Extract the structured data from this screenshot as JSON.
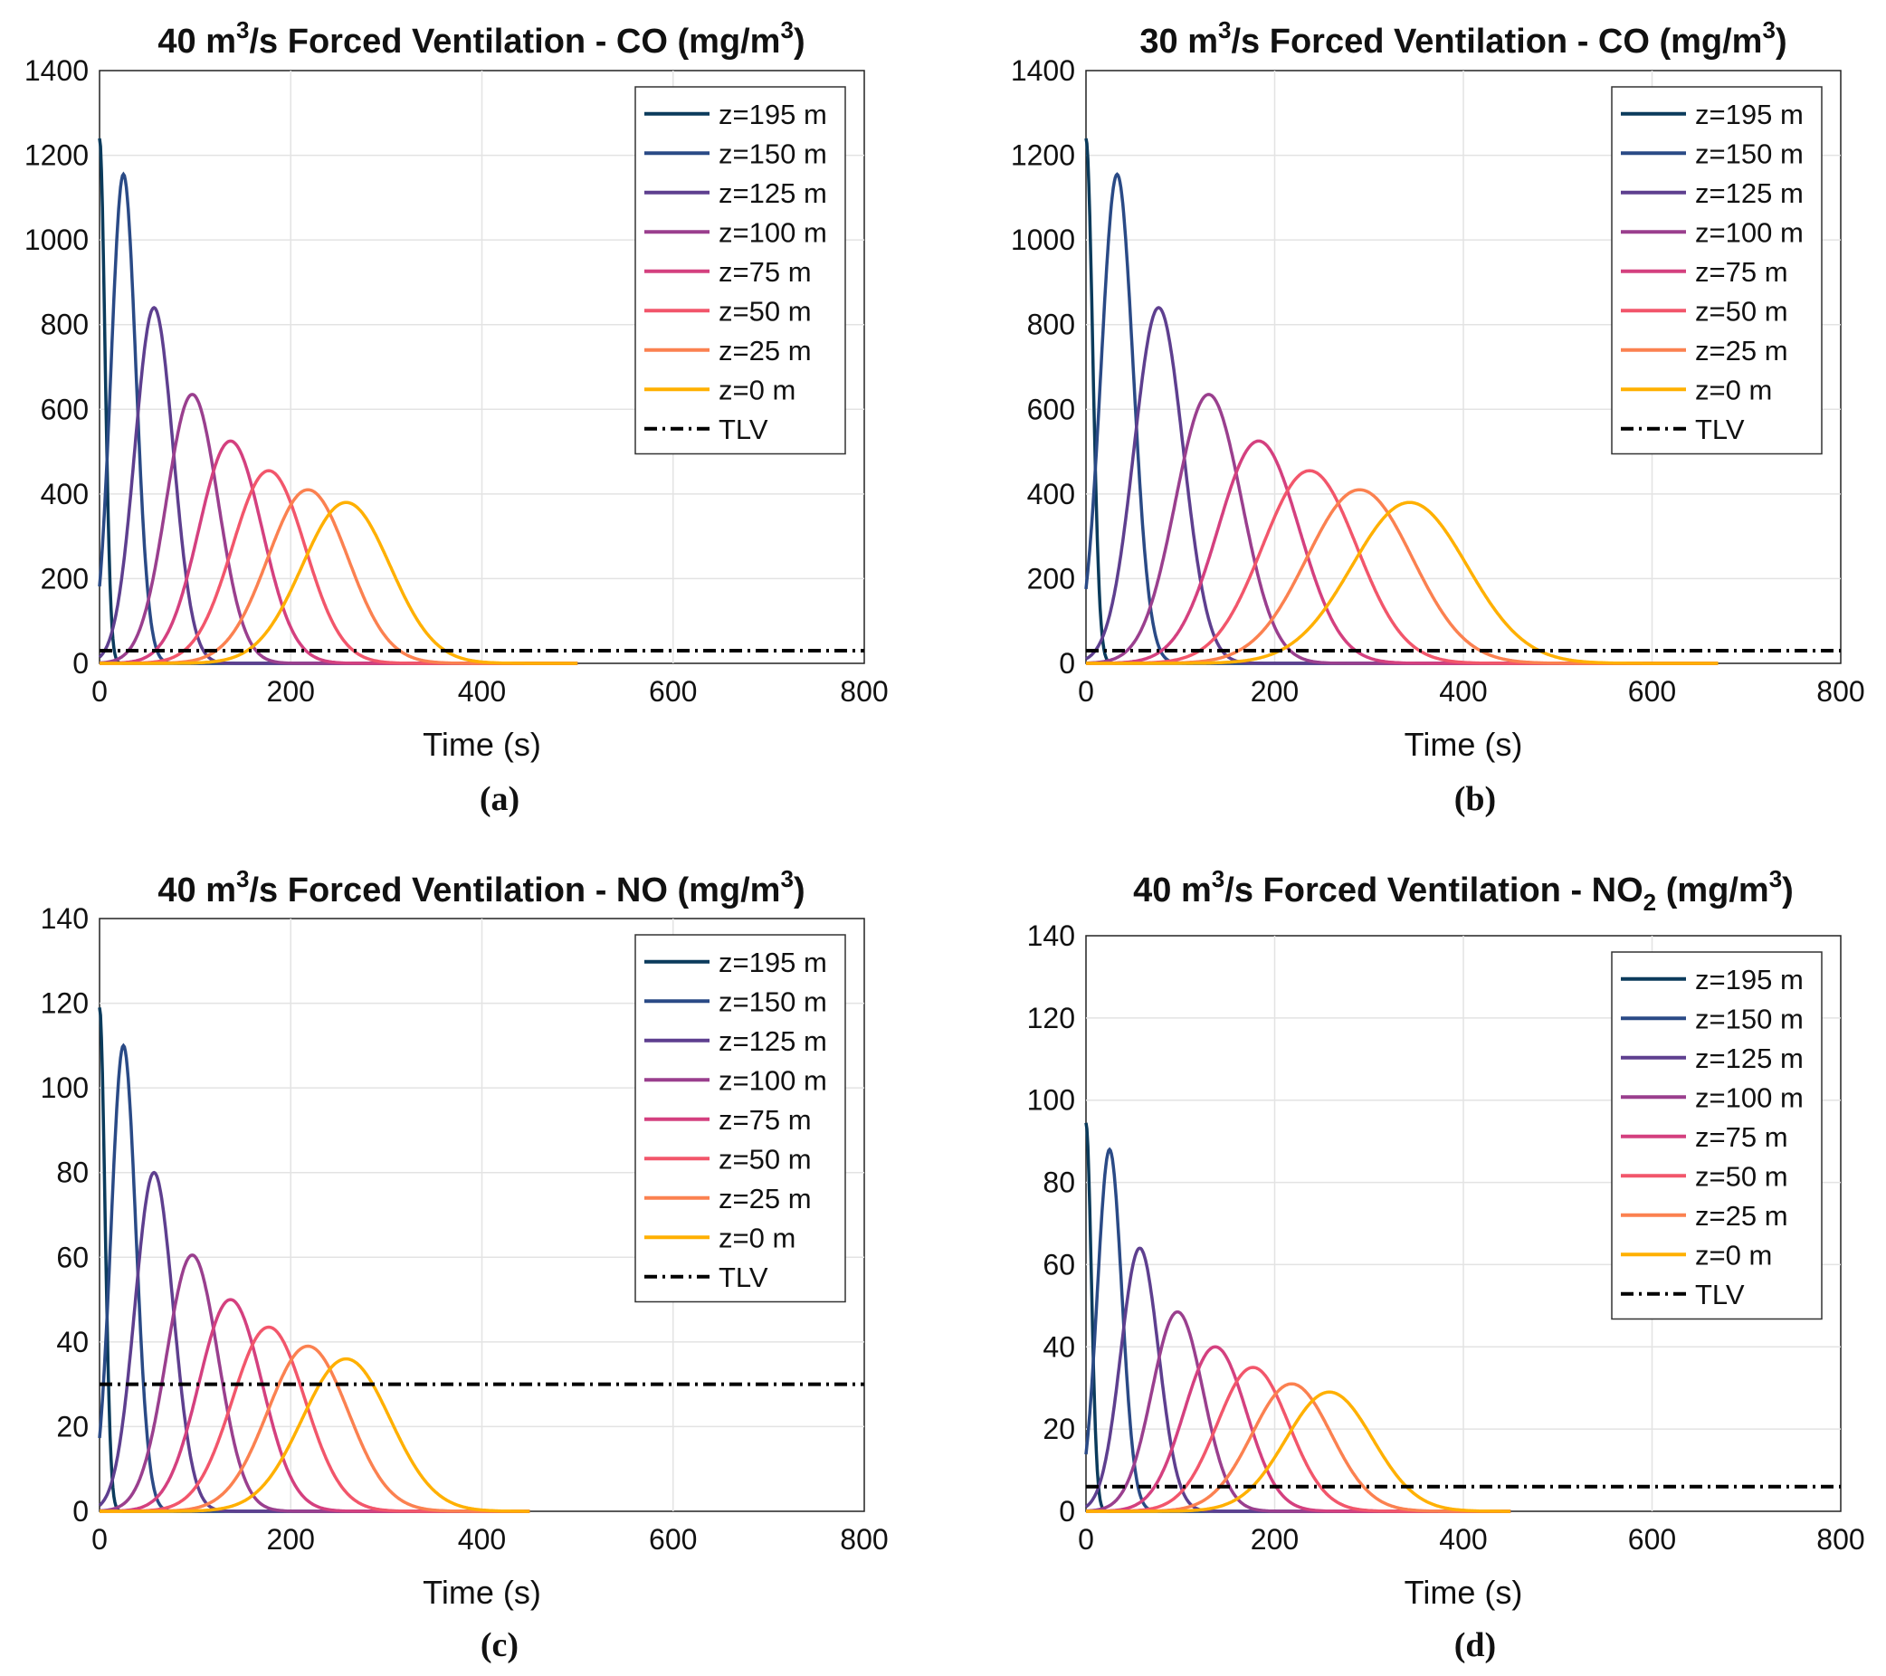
{
  "chart_data": [
    {
      "type": "line",
      "panel": "(a)",
      "title_parts": [
        "40 m",
        "3",
        "/s Forced Ventilation - CO (mg/m",
        "3",
        ")"
      ],
      "title": "40 m3/s Forced Ventilation - CO (mg/m3)",
      "xlabel": "Time (s)",
      "ylabel": "",
      "xlim": [
        0,
        800
      ],
      "ylim": [
        0,
        1400
      ],
      "xticks": [
        "0",
        "200",
        "400",
        "600",
        "800"
      ],
      "yticks": [
        "0",
        "200",
        "400",
        "600",
        "800",
        "1000",
        "1200",
        "1400"
      ],
      "xtick_values": [
        0,
        200,
        400,
        600,
        800
      ],
      "ytick_values": [
        0,
        200,
        400,
        600,
        800,
        1000,
        1200,
        1400
      ],
      "grid": true,
      "legend_position": "top-right",
      "t_end": 500,
      "series": [
        {
          "name": "z=195 m",
          "color": "#0b3b5c",
          "peak_time": 0,
          "peak_value": 1240,
          "width": 8
        },
        {
          "name": "z=150 m",
          "color": "#2a4a86",
          "peak_time": 25,
          "peak_value": 1155,
          "width": 13
        },
        {
          "name": "z=125 m",
          "color": "#5e3f8f",
          "peak_time": 57,
          "peak_value": 840,
          "width": 20
        },
        {
          "name": "z=100 m",
          "color": "#9a3f8e",
          "peak_time": 97,
          "peak_value": 635,
          "width": 27
        },
        {
          "name": "z=75 m",
          "color": "#d4407f",
          "peak_time": 137,
          "peak_value": 525,
          "width": 33
        },
        {
          "name": "z=50 m",
          "color": "#f2566b",
          "peak_time": 177,
          "peak_value": 455,
          "width": 38
        },
        {
          "name": "z=25 m",
          "color": "#fb8150",
          "peak_time": 218,
          "peak_value": 410,
          "width": 42
        },
        {
          "name": "z=0 m",
          "color": "#ffb000",
          "peak_time": 258,
          "peak_value": 380,
          "width": 46
        },
        {
          "name": "TLV",
          "color": "#000000",
          "constant": 30
        }
      ]
    },
    {
      "type": "line",
      "panel": "(b)",
      "title_parts": [
        "30 m",
        "3",
        "/s Forced Ventilation - CO (mg/m",
        "3",
        ")"
      ],
      "title": "30 m3/s Forced Ventilation - CO (mg/m3)",
      "xlabel": "Time (s)",
      "ylabel": "",
      "xlim": [
        0,
        800
      ],
      "ylim": [
        0,
        1400
      ],
      "xticks": [
        "0",
        "200",
        "400",
        "600",
        "800"
      ],
      "yticks": [
        "0",
        "200",
        "400",
        "600",
        "800",
        "1000",
        "1200",
        "1400"
      ],
      "xtick_values": [
        0,
        200,
        400,
        600,
        800
      ],
      "ytick_values": [
        0,
        200,
        400,
        600,
        800,
        1000,
        1200,
        1400
      ],
      "grid": true,
      "legend_position": "top-right",
      "t_end": 670,
      "series": [
        {
          "name": "z=195 m",
          "color": "#0b3b5c",
          "peak_time": 0,
          "peak_value": 1240,
          "width": 10
        },
        {
          "name": "z=150 m",
          "color": "#2a4a86",
          "peak_time": 33,
          "peak_value": 1155,
          "width": 17
        },
        {
          "name": "z=125 m",
          "color": "#5e3f8f",
          "peak_time": 77,
          "peak_value": 840,
          "width": 26
        },
        {
          "name": "z=100 m",
          "color": "#9a3f8e",
          "peak_time": 130,
          "peak_value": 635,
          "width": 35
        },
        {
          "name": "z=75 m",
          "color": "#d4407f",
          "peak_time": 183,
          "peak_value": 525,
          "width": 43
        },
        {
          "name": "z=50 m",
          "color": "#f2566b",
          "peak_time": 237,
          "peak_value": 455,
          "width": 50
        },
        {
          "name": "z=25 m",
          "color": "#fb8150",
          "peak_time": 290,
          "peak_value": 410,
          "width": 56
        },
        {
          "name": "z=0 m",
          "color": "#ffb000",
          "peak_time": 343,
          "peak_value": 380,
          "width": 61
        },
        {
          "name": "TLV",
          "color": "#000000",
          "constant": 30
        }
      ]
    },
    {
      "type": "line",
      "panel": "(c)",
      "title_parts": [
        "40 m",
        "3",
        "/s Forced Ventilation - NO (mg/m",
        "3",
        ")"
      ],
      "title": "40 m3/s Forced Ventilation - NO (mg/m3)",
      "xlabel": "Time (s)",
      "ylabel": "",
      "xlim": [
        0,
        800
      ],
      "ylim": [
        0,
        140
      ],
      "xticks": [
        "0",
        "200",
        "400",
        "600",
        "800"
      ],
      "yticks": [
        "0",
        "20",
        "40",
        "60",
        "80",
        "100",
        "120",
        "140"
      ],
      "xtick_values": [
        0,
        200,
        400,
        600,
        800
      ],
      "ytick_values": [
        0,
        20,
        40,
        60,
        80,
        100,
        120,
        140
      ],
      "grid": true,
      "legend_position": "top-right",
      "t_end": 450,
      "series": [
        {
          "name": "z=195 m",
          "color": "#0b3b5c",
          "peak_time": 0,
          "peak_value": 119,
          "width": 8
        },
        {
          "name": "z=150 m",
          "color": "#2a4a86",
          "peak_time": 25,
          "peak_value": 110,
          "width": 13
        },
        {
          "name": "z=125 m",
          "color": "#5e3f8f",
          "peak_time": 57,
          "peak_value": 80,
          "width": 20
        },
        {
          "name": "z=100 m",
          "color": "#9a3f8e",
          "peak_time": 97,
          "peak_value": 60.5,
          "width": 27
        },
        {
          "name": "z=75 m",
          "color": "#d4407f",
          "peak_time": 137,
          "peak_value": 50,
          "width": 33
        },
        {
          "name": "z=50 m",
          "color": "#f2566b",
          "peak_time": 177,
          "peak_value": 43.5,
          "width": 38
        },
        {
          "name": "z=25 m",
          "color": "#fb8150",
          "peak_time": 218,
          "peak_value": 39,
          "width": 42
        },
        {
          "name": "z=0 m",
          "color": "#ffb000",
          "peak_time": 258,
          "peak_value": 36,
          "width": 46
        },
        {
          "name": "TLV",
          "color": "#000000",
          "constant": 30
        }
      ]
    },
    {
      "type": "line",
      "panel": "(d)",
      "title_parts": [
        "40 m",
        "3",
        "/s Forced Ventilation - NO",
        "2",
        " (mg/m",
        "3",
        ")"
      ],
      "title": "40 m3/s Forced Ventilation - NO2 (mg/m3)",
      "xlabel": "Time (s)",
      "ylabel": "",
      "xlim": [
        0,
        800
      ],
      "ylim": [
        0,
        140
      ],
      "xticks": [
        "0",
        "200",
        "400",
        "600",
        "800"
      ],
      "yticks": [
        "0",
        "20",
        "40",
        "60",
        "80",
        "100",
        "120",
        "140"
      ],
      "xtick_values": [
        0,
        200,
        400,
        600,
        800
      ],
      "ytick_values": [
        0,
        20,
        40,
        60,
        80,
        100,
        120,
        140
      ],
      "grid": true,
      "legend_position": "top-right",
      "t_end": 450,
      "series": [
        {
          "name": "z=195 m",
          "color": "#0b3b5c",
          "peak_time": 0,
          "peak_value": 94.5,
          "width": 8
        },
        {
          "name": "z=150 m",
          "color": "#2a4a86",
          "peak_time": 25,
          "peak_value": 88,
          "width": 13
        },
        {
          "name": "z=125 m",
          "color": "#5e3f8f",
          "peak_time": 57,
          "peak_value": 64,
          "width": 20
        },
        {
          "name": "z=100 m",
          "color": "#9a3f8e",
          "peak_time": 97,
          "peak_value": 48.5,
          "width": 27
        },
        {
          "name": "z=75 m",
          "color": "#d4407f",
          "peak_time": 137,
          "peak_value": 40,
          "width": 33
        },
        {
          "name": "z=50 m",
          "color": "#f2566b",
          "peak_time": 177,
          "peak_value": 35,
          "width": 38
        },
        {
          "name": "z=25 m",
          "color": "#fb8150",
          "peak_time": 218,
          "peak_value": 31,
          "width": 42
        },
        {
          "name": "z=0 m",
          "color": "#ffb000",
          "peak_time": 258,
          "peak_value": 29,
          "width": 46
        },
        {
          "name": "TLV",
          "color": "#000000",
          "constant": 6
        }
      ]
    }
  ]
}
